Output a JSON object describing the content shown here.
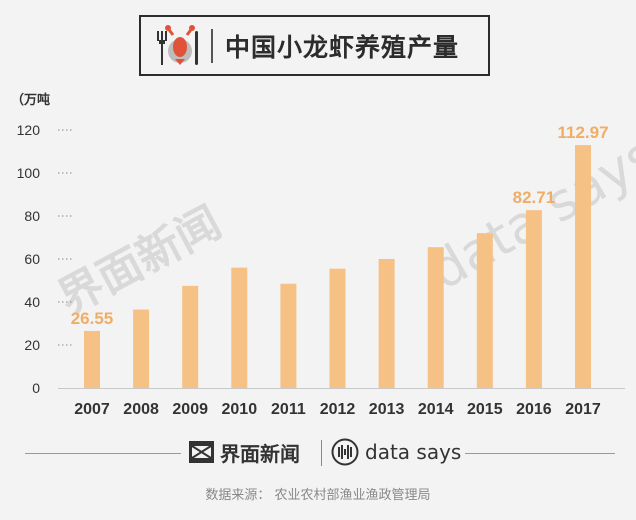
{
  "title": "中国小龙虾养殖产量",
  "chart_data": {
    "type": "bar",
    "title": "中国小龙虾养殖产量",
    "ylabel": "（万吨",
    "xlabel": "",
    "categories": [
      "2007",
      "2008",
      "2009",
      "2010",
      "2011",
      "2012",
      "2013",
      "2014",
      "2015",
      "2016",
      "2017"
    ],
    "values": [
      26.55,
      36.5,
      47.5,
      56.0,
      48.5,
      55.5,
      60.0,
      65.5,
      72.0,
      82.71,
      112.97
    ],
    "data_labels": [
      "26.55",
      "",
      "",
      "",
      "",
      "",
      "",
      "",
      "",
      "82.71",
      "112.97"
    ],
    "y_ticks": [
      "0",
      "20",
      "40",
      "60",
      "80",
      "100",
      "120"
    ],
    "ylim": [
      0,
      130
    ],
    "grid": "dotted tick guides",
    "bar_color": "#f6c185",
    "label_color": "#f0ad65"
  },
  "watermarks": [
    "界面新闻",
    "data says"
  ],
  "footer": {
    "brand1": "界面新闻",
    "brand2": "data says",
    "source": "数据来源：  农业农村部渔业渔政管理局"
  },
  "icons": [
    "lobster-plate-icon",
    "jiemian-logo-icon",
    "datasays-logo-icon"
  ]
}
